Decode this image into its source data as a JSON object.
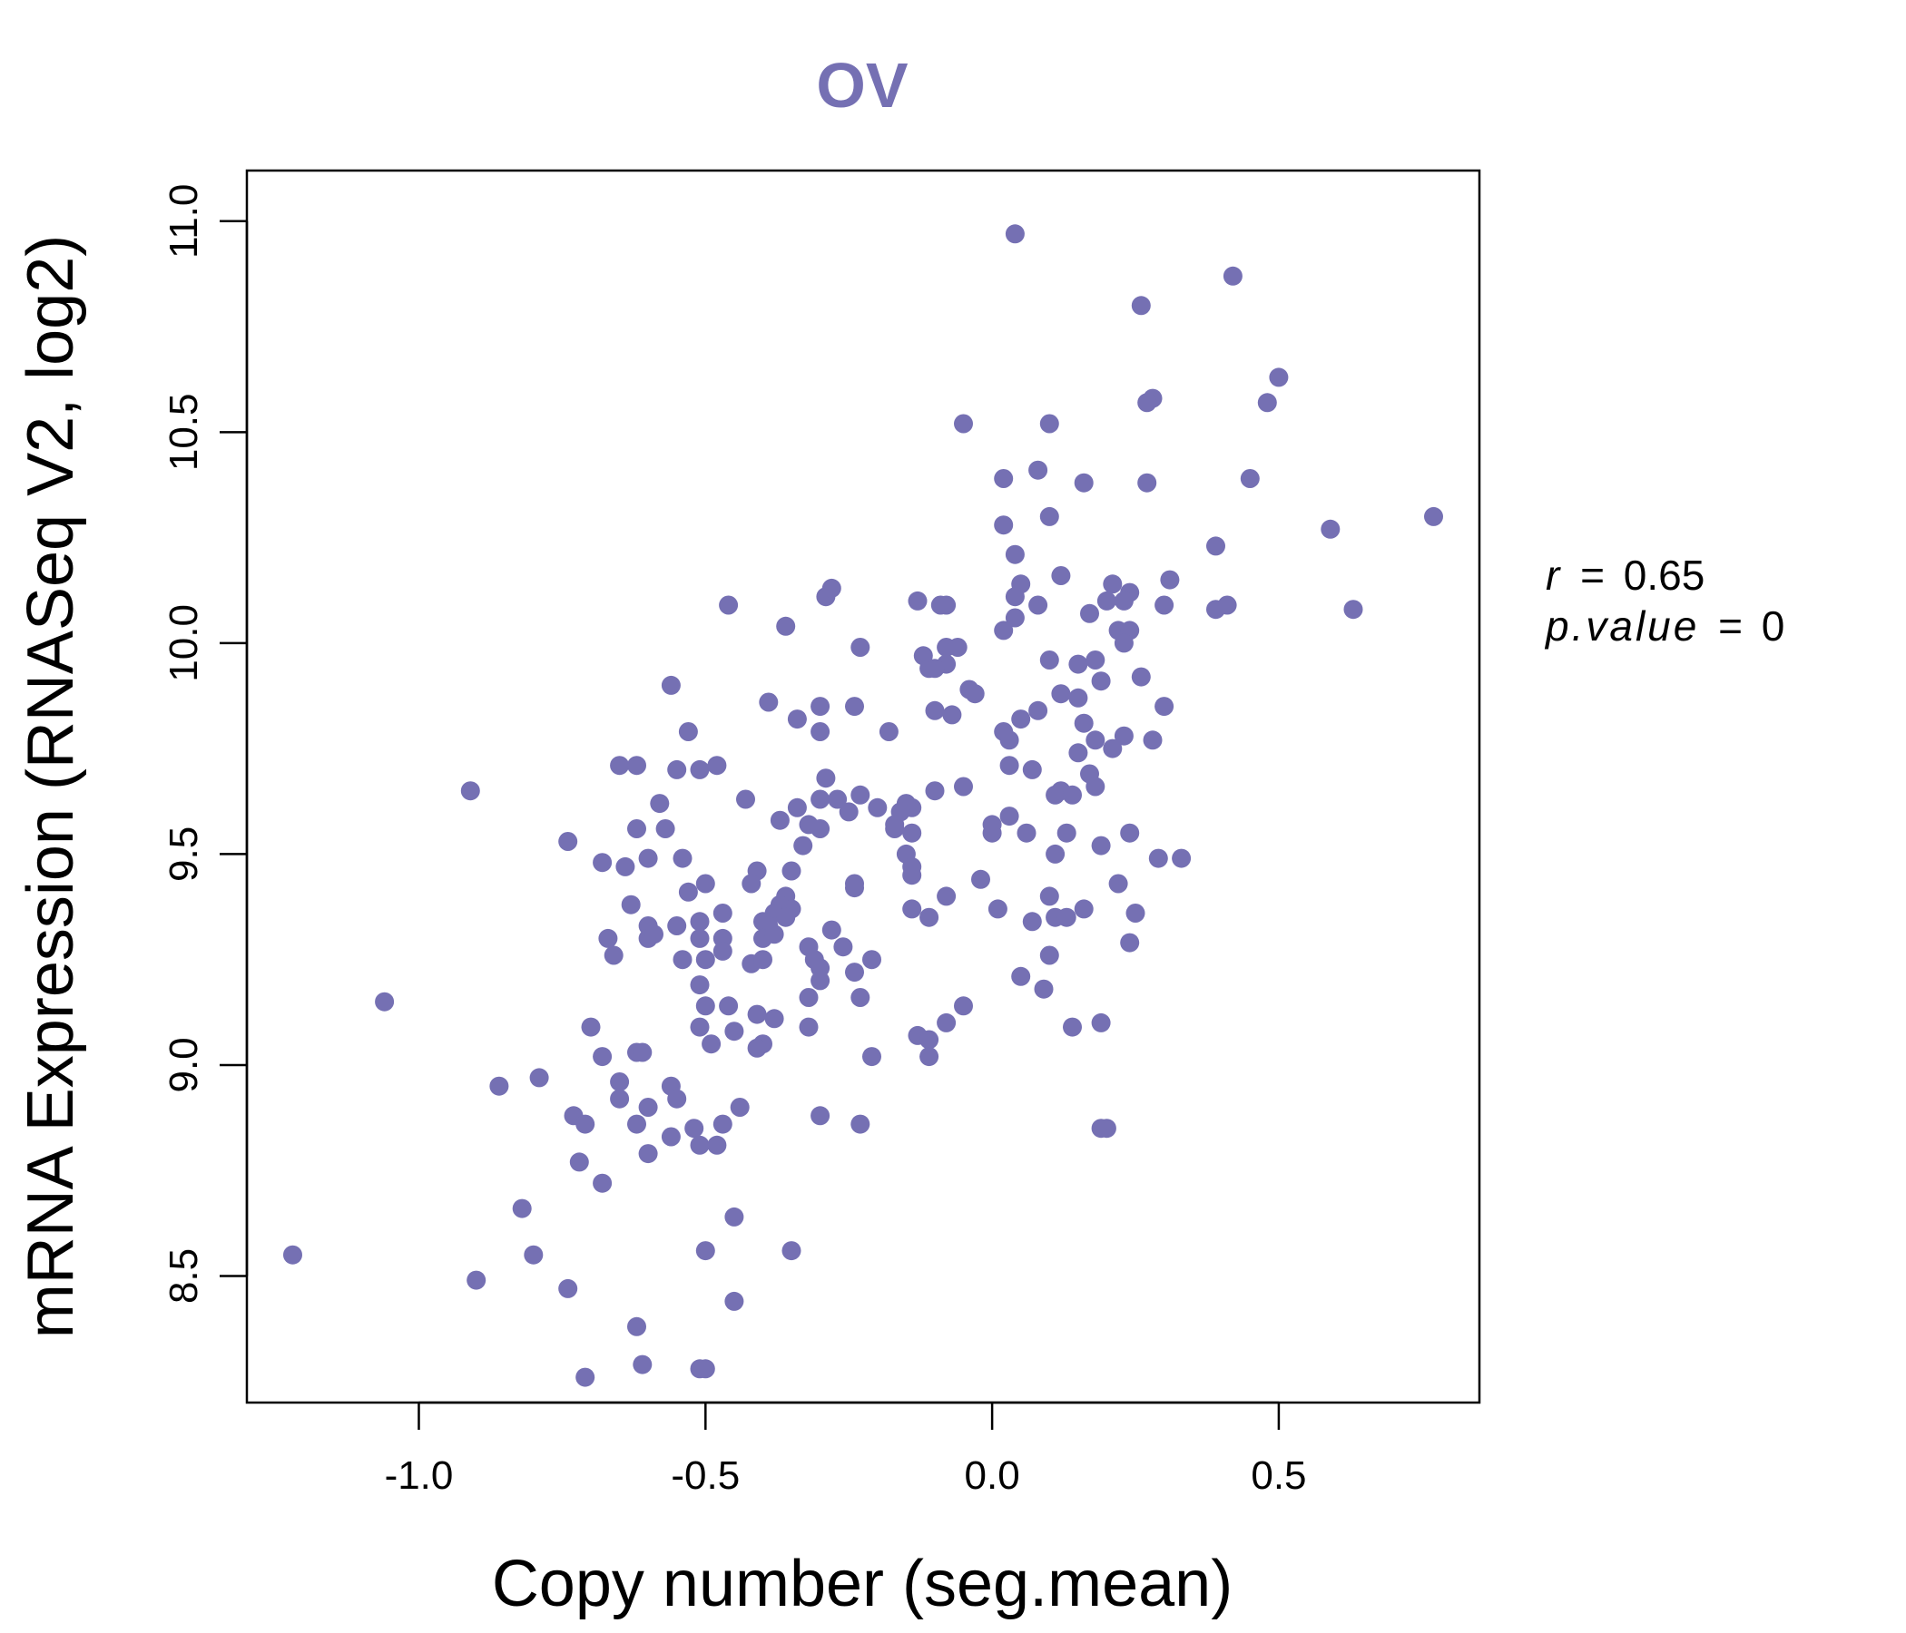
{
  "colors": {
    "accent": "#7570B3",
    "axis": "#000000",
    "background": "#ffffff"
  },
  "chart_data": {
    "type": "scatter",
    "title": "OV",
    "xlabel": "Copy number (seg.mean)",
    "ylabel": "mRNA Expression (RNASeq V2, log2)",
    "xlim": [
      -1.3,
      0.85
    ],
    "ylim": [
      8.2,
      11.12
    ],
    "xticks": [
      -1.0,
      -0.5,
      0.0,
      0.5
    ],
    "xtick_labels": [
      "-1.0",
      "-0.5",
      "0.0",
      "0.5"
    ],
    "yticks": [
      8.5,
      9.0,
      9.5,
      10.0,
      10.5,
      11.0
    ],
    "ytick_labels": [
      "8.5",
      "9.0",
      "9.5",
      "10.0",
      "10.5",
      "11.0"
    ],
    "stats": {
      "r_symbol": "r",
      "r_value": "0.65",
      "p_symbol": "p.value",
      "p_value": "0",
      "equals": "="
    },
    "points": [
      [
        0.04,
        10.97
      ],
      [
        0.42,
        10.87
      ],
      [
        0.26,
        10.8
      ],
      [
        0.5,
        10.63
      ],
      [
        0.28,
        10.58
      ],
      [
        0.27,
        10.57
      ],
      [
        0.48,
        10.57
      ],
      [
        -0.05,
        10.52
      ],
      [
        0.1,
        10.52
      ],
      [
        0.08,
        10.41
      ],
      [
        0.02,
        10.39
      ],
      [
        0.16,
        10.38
      ],
      [
        0.27,
        10.38
      ],
      [
        0.45,
        10.39
      ],
      [
        0.1,
        10.3
      ],
      [
        0.77,
        10.3
      ],
      [
        0.02,
        10.28
      ],
      [
        0.59,
        10.27
      ],
      [
        0.39,
        10.23
      ],
      [
        0.04,
        10.21
      ],
      [
        -0.29,
        10.11
      ],
      [
        -0.28,
        10.13
      ],
      [
        0.05,
        10.14
      ],
      [
        0.12,
        10.16
      ],
      [
        0.21,
        10.14
      ],
      [
        0.24,
        10.12
      ],
      [
        0.31,
        10.15
      ],
      [
        -0.46,
        10.09
      ],
      [
        -0.13,
        10.1
      ],
      [
        -0.09,
        10.09
      ],
      [
        -0.08,
        10.09
      ],
      [
        0.04,
        10.11
      ],
      [
        0.08,
        10.09
      ],
      [
        0.2,
        10.1
      ],
      [
        0.23,
        10.1
      ],
      [
        0.3,
        10.09
      ],
      [
        0.39,
        10.08
      ],
      [
        0.41,
        10.09
      ],
      [
        0.63,
        10.08
      ],
      [
        -0.36,
        10.04
      ],
      [
        0.04,
        10.06
      ],
      [
        0.02,
        10.03
      ],
      [
        0.17,
        10.07
      ],
      [
        0.22,
        10.03
      ],
      [
        0.24,
        10.03
      ],
      [
        0.23,
        10.0
      ],
      [
        -0.23,
        9.99
      ],
      [
        -0.08,
        9.99
      ],
      [
        -0.06,
        9.99
      ],
      [
        -0.12,
        9.97
      ],
      [
        0.1,
        9.96
      ],
      [
        -0.11,
        9.94
      ],
      [
        -0.08,
        9.95
      ],
      [
        -0.1,
        9.94
      ],
      [
        0.15,
        9.95
      ],
      [
        0.18,
        9.96
      ],
      [
        -0.56,
        9.9
      ],
      [
        0.19,
        9.91
      ],
      [
        0.26,
        9.92
      ],
      [
        -0.04,
        9.89
      ],
      [
        -0.03,
        9.88
      ],
      [
        0.12,
        9.88
      ],
      [
        0.15,
        9.87
      ],
      [
        -0.39,
        9.86
      ],
      [
        -0.3,
        9.85
      ],
      [
        -0.24,
        9.85
      ],
      [
        0.08,
        9.84
      ],
      [
        -0.1,
        9.84
      ],
      [
        -0.07,
        9.83
      ],
      [
        0.3,
        9.85
      ],
      [
        -0.34,
        9.82
      ],
      [
        0.05,
        9.82
      ],
      [
        0.16,
        9.81
      ],
      [
        -0.53,
        9.79
      ],
      [
        -0.3,
        9.79
      ],
      [
        -0.18,
        9.79
      ],
      [
        0.02,
        9.79
      ],
      [
        0.03,
        9.77
      ],
      [
        0.18,
        9.77
      ],
      [
        0.23,
        9.78
      ],
      [
        0.28,
        9.77
      ],
      [
        0.15,
        9.74
      ],
      [
        0.21,
        9.75
      ],
      [
        -0.65,
        9.71
      ],
      [
        -0.62,
        9.71
      ],
      [
        -0.55,
        9.7
      ],
      [
        -0.51,
        9.7
      ],
      [
        -0.48,
        9.71
      ],
      [
        0.03,
        9.71
      ],
      [
        0.07,
        9.7
      ],
      [
        0.17,
        9.69
      ],
      [
        -0.29,
        9.68
      ],
      [
        -0.05,
        9.66
      ],
      [
        0.18,
        9.66
      ],
      [
        -0.91,
        9.65
      ],
      [
        -0.43,
        9.63
      ],
      [
        -0.3,
        9.63
      ],
      [
        -0.27,
        9.63
      ],
      [
        -0.23,
        9.64
      ],
      [
        -0.1,
        9.65
      ],
      [
        0.11,
        9.64
      ],
      [
        0.12,
        9.65
      ],
      [
        0.14,
        9.64
      ],
      [
        -0.58,
        9.62
      ],
      [
        -0.34,
        9.61
      ],
      [
        -0.25,
        9.6
      ],
      [
        -0.14,
        9.61
      ],
      [
        -0.15,
        9.62
      ],
      [
        -0.16,
        9.6
      ],
      [
        -0.2,
        9.61
      ],
      [
        -0.37,
        9.58
      ],
      [
        0.03,
        9.59
      ],
      [
        0.0,
        9.57
      ],
      [
        -0.32,
        9.57
      ],
      [
        -0.17,
        9.57
      ],
      [
        -0.17,
        9.56
      ],
      [
        -0.62,
        9.56
      ],
      [
        -0.57,
        9.56
      ],
      [
        -0.3,
        9.56
      ],
      [
        -0.14,
        9.55
      ],
      [
        0.0,
        9.55
      ],
      [
        0.06,
        9.55
      ],
      [
        0.13,
        9.55
      ],
      [
        0.24,
        9.55
      ],
      [
        -0.74,
        9.53
      ],
      [
        -0.33,
        9.52
      ],
      [
        -0.15,
        9.5
      ],
      [
        0.11,
        9.5
      ],
      [
        0.19,
        9.52
      ],
      [
        0.29,
        9.49
      ],
      [
        0.33,
        9.49
      ],
      [
        -0.68,
        9.48
      ],
      [
        -0.6,
        9.49
      ],
      [
        -0.54,
        9.49
      ],
      [
        -0.14,
        9.47
      ],
      [
        -0.64,
        9.47
      ],
      [
        -0.41,
        9.46
      ],
      [
        -0.35,
        9.46
      ],
      [
        -0.14,
        9.45
      ],
      [
        -0.02,
        9.44
      ],
      [
        -0.5,
        9.43
      ],
      [
        -0.42,
        9.43
      ],
      [
        -0.24,
        9.43
      ],
      [
        -0.24,
        9.42
      ],
      [
        0.22,
        9.43
      ],
      [
        -0.53,
        9.41
      ],
      [
        -0.36,
        9.4
      ],
      [
        -0.08,
        9.4
      ],
      [
        0.1,
        9.4
      ],
      [
        -0.63,
        9.38
      ],
      [
        -0.37,
        9.38
      ],
      [
        -0.35,
        9.37
      ],
      [
        -0.14,
        9.37
      ],
      [
        0.01,
        9.37
      ],
      [
        0.16,
        9.37
      ],
      [
        -0.47,
        9.36
      ],
      [
        -0.38,
        9.36
      ],
      [
        -0.36,
        9.35
      ],
      [
        0.25,
        9.36
      ],
      [
        -0.6,
        9.33
      ],
      [
        -0.55,
        9.33
      ],
      [
        -0.51,
        9.34
      ],
      [
        -0.4,
        9.34
      ],
      [
        -0.39,
        9.33
      ],
      [
        -0.11,
        9.35
      ],
      [
        0.07,
        9.34
      ],
      [
        0.11,
        9.35
      ],
      [
        0.13,
        9.35
      ],
      [
        -0.67,
        9.3
      ],
      [
        -0.6,
        9.3
      ],
      [
        -0.59,
        9.31
      ],
      [
        -0.51,
        9.3
      ],
      [
        -0.47,
        9.3
      ],
      [
        -0.4,
        9.3
      ],
      [
        -0.38,
        9.31
      ],
      [
        -0.28,
        9.32
      ],
      [
        -0.32,
        9.28
      ],
      [
        -0.26,
        9.28
      ],
      [
        0.24,
        9.29
      ],
      [
        -0.66,
        9.26
      ],
      [
        -0.54,
        9.25
      ],
      [
        -0.5,
        9.25
      ],
      [
        -0.47,
        9.27
      ],
      [
        -0.42,
        9.24
      ],
      [
        -0.4,
        9.25
      ],
      [
        -0.31,
        9.25
      ],
      [
        -0.3,
        9.23
      ],
      [
        -0.21,
        9.25
      ],
      [
        0.1,
        9.26
      ],
      [
        -0.24,
        9.22
      ],
      [
        0.05,
        9.21
      ],
      [
        -0.3,
        9.2
      ],
      [
        -0.51,
        9.19
      ],
      [
        0.09,
        9.18
      ],
      [
        -0.32,
        9.16
      ],
      [
        -0.23,
        9.16
      ],
      [
        -1.06,
        9.15
      ],
      [
        -0.5,
        9.14
      ],
      [
        -0.46,
        9.14
      ],
      [
        -0.05,
        9.14
      ],
      [
        -0.38,
        9.11
      ],
      [
        -0.41,
        9.12
      ],
      [
        -0.08,
        9.1
      ],
      [
        0.19,
        9.1
      ],
      [
        -0.7,
        9.09
      ],
      [
        -0.51,
        9.09
      ],
      [
        -0.45,
        9.08
      ],
      [
        -0.32,
        9.09
      ],
      [
        0.14,
        9.09
      ],
      [
        -0.13,
        9.07
      ],
      [
        -0.11,
        9.06
      ],
      [
        -0.49,
        9.05
      ],
      [
        -0.4,
        9.05
      ],
      [
        -0.41,
        9.04
      ],
      [
        -0.62,
        9.03
      ],
      [
        -0.61,
        9.03
      ],
      [
        -0.68,
        9.02
      ],
      [
        -0.21,
        9.02
      ],
      [
        -0.11,
        9.02
      ],
      [
        -0.79,
        8.97
      ],
      [
        -0.86,
        8.95
      ],
      [
        -0.65,
        8.96
      ],
      [
        -0.56,
        8.95
      ],
      [
        -0.65,
        8.92
      ],
      [
        -0.55,
        8.92
      ],
      [
        -0.6,
        8.9
      ],
      [
        -0.44,
        8.9
      ],
      [
        -0.73,
        8.88
      ],
      [
        -0.3,
        8.88
      ],
      [
        -0.71,
        8.86
      ],
      [
        -0.62,
        8.86
      ],
      [
        -0.52,
        8.85
      ],
      [
        -0.47,
        8.86
      ],
      [
        -0.23,
        8.86
      ],
      [
        0.19,
        8.85
      ],
      [
        0.2,
        8.85
      ],
      [
        -0.56,
        8.83
      ],
      [
        -0.51,
        8.81
      ],
      [
        -0.48,
        8.81
      ],
      [
        -0.6,
        8.79
      ],
      [
        -0.72,
        8.77
      ],
      [
        -0.68,
        8.72
      ],
      [
        -0.82,
        8.66
      ],
      [
        -0.45,
        8.64
      ],
      [
        -1.22,
        8.55
      ],
      [
        -0.8,
        8.55
      ],
      [
        -0.5,
        8.56
      ],
      [
        -0.35,
        8.56
      ],
      [
        -0.9,
        8.49
      ],
      [
        -0.74,
        8.47
      ],
      [
        -0.45,
        8.44
      ],
      [
        -0.62,
        8.38
      ],
      [
        -0.61,
        8.29
      ],
      [
        -0.51,
        8.28
      ],
      [
        -0.5,
        8.28
      ],
      [
        -0.71,
        8.26
      ]
    ]
  }
}
